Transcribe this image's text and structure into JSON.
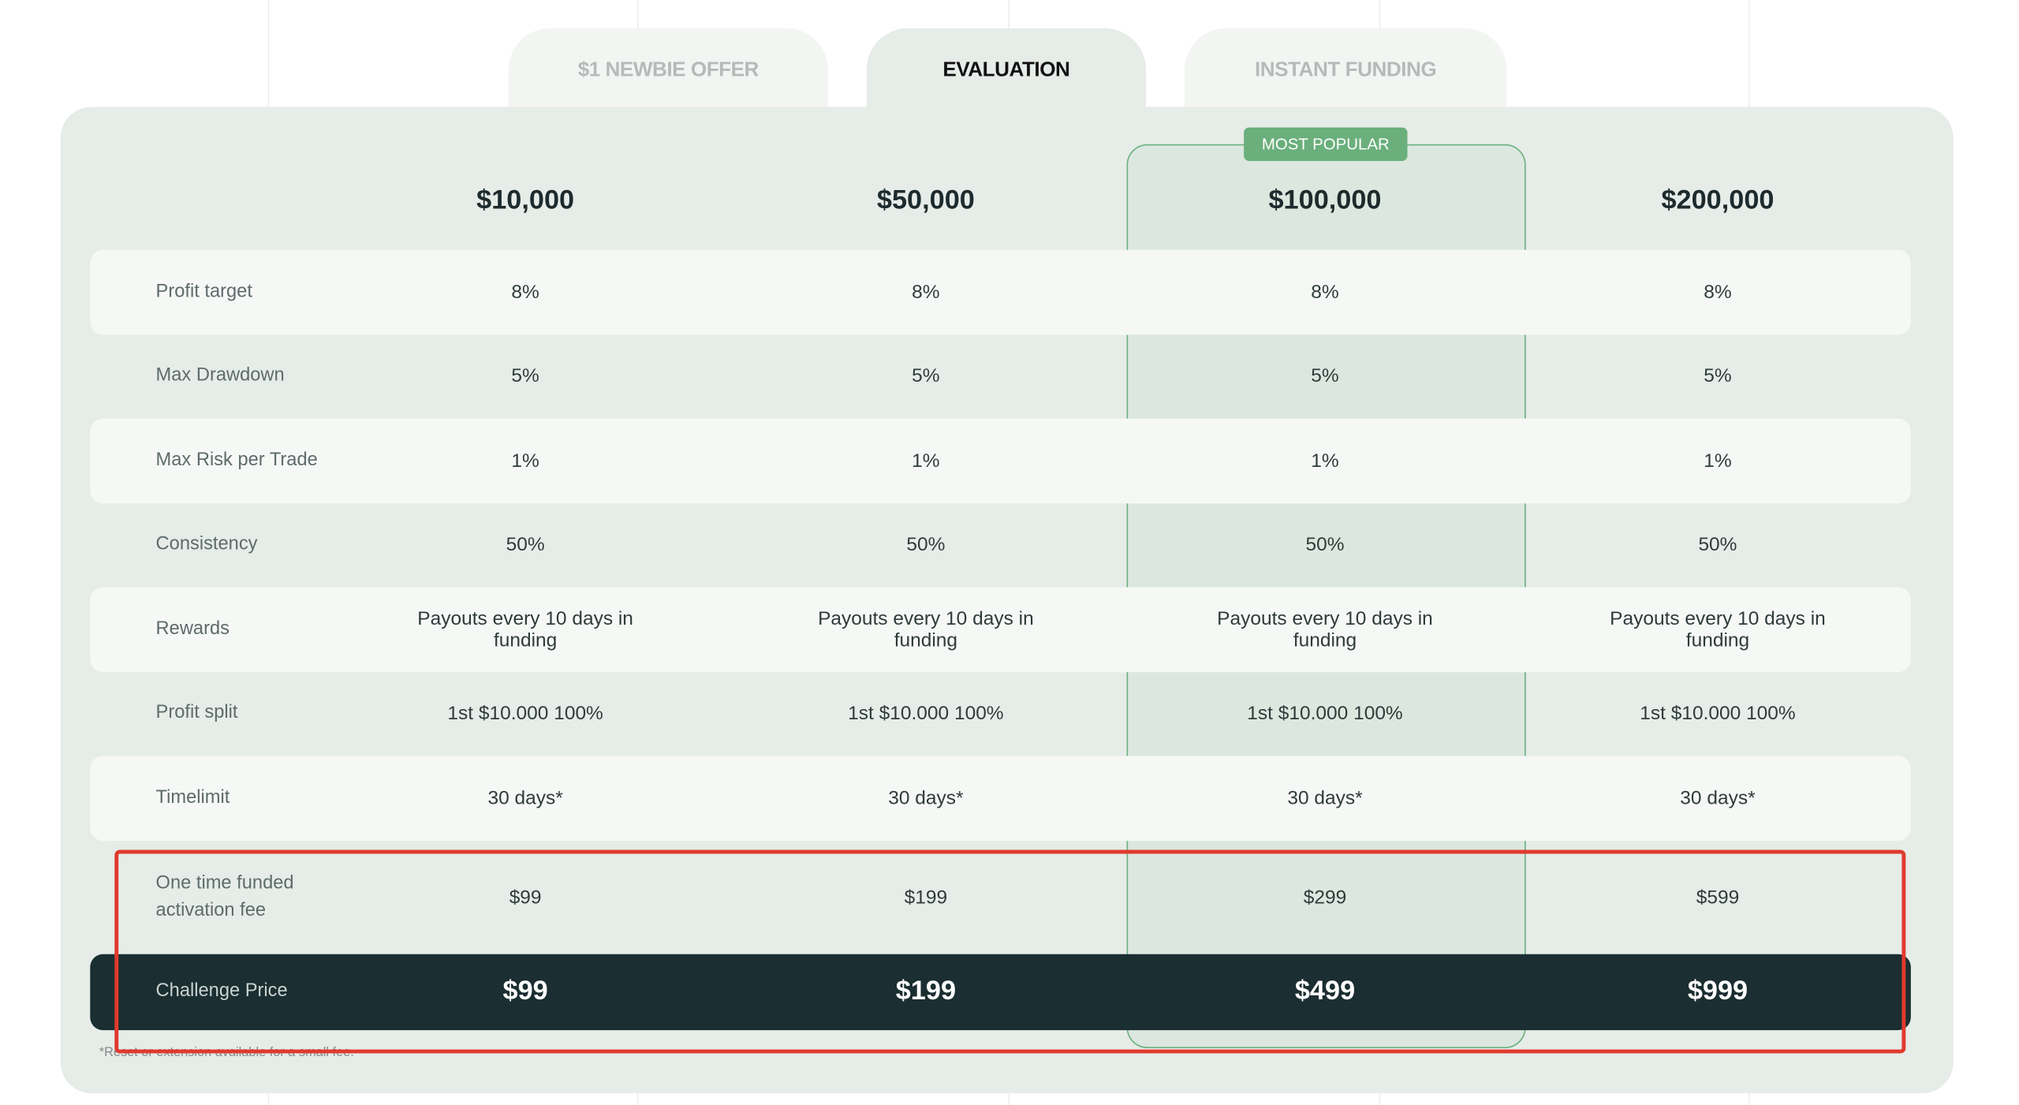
{
  "tabs": [
    "$1 NEWBIE OFFER",
    "EVALUATION",
    "INSTANT FUNDING"
  ],
  "badge": "MOST POPULAR",
  "plans": [
    "$10,000",
    "$50,000",
    "$100,000",
    "$200,000"
  ],
  "rows": [
    {
      "label": "Profit target",
      "cells": [
        "8%",
        "8%",
        "8%",
        "8%"
      ]
    },
    {
      "label": "Max Drawdown",
      "cells": [
        "5%",
        "5%",
        "5%",
        "5%"
      ]
    },
    {
      "label": "Max Risk per Trade",
      "cells": [
        "1%",
        "1%",
        "1%",
        "1%"
      ]
    },
    {
      "label": "Consistency",
      "cells": [
        "50%",
        "50%",
        "50%",
        "50%"
      ]
    },
    {
      "label": "Rewards",
      "cells": [
        "Payouts every 10 days in funding",
        "Payouts every 10 days in funding",
        "Payouts every 10 days in funding",
        "Payouts every 10 days in funding"
      ]
    },
    {
      "label": "Profit split",
      "cells": [
        "1st $10.000 100%",
        "1st $10.000 100%",
        "1st $10.000 100%",
        "1st $10.000 100%"
      ]
    },
    {
      "label": "Timelimit",
      "cells": [
        "30 days*",
        "30 days*",
        "30 days*",
        "30 days*"
      ]
    },
    {
      "label": "One time funded activation fee",
      "cells": [
        "$99",
        "$199",
        "$299",
        "$599"
      ]
    }
  ],
  "challenge": {
    "label": "Challenge Price",
    "cells": [
      "$99",
      "$199",
      "$499",
      "$999"
    ]
  },
  "footnote": "*Reset or extension available for a small fee."
}
